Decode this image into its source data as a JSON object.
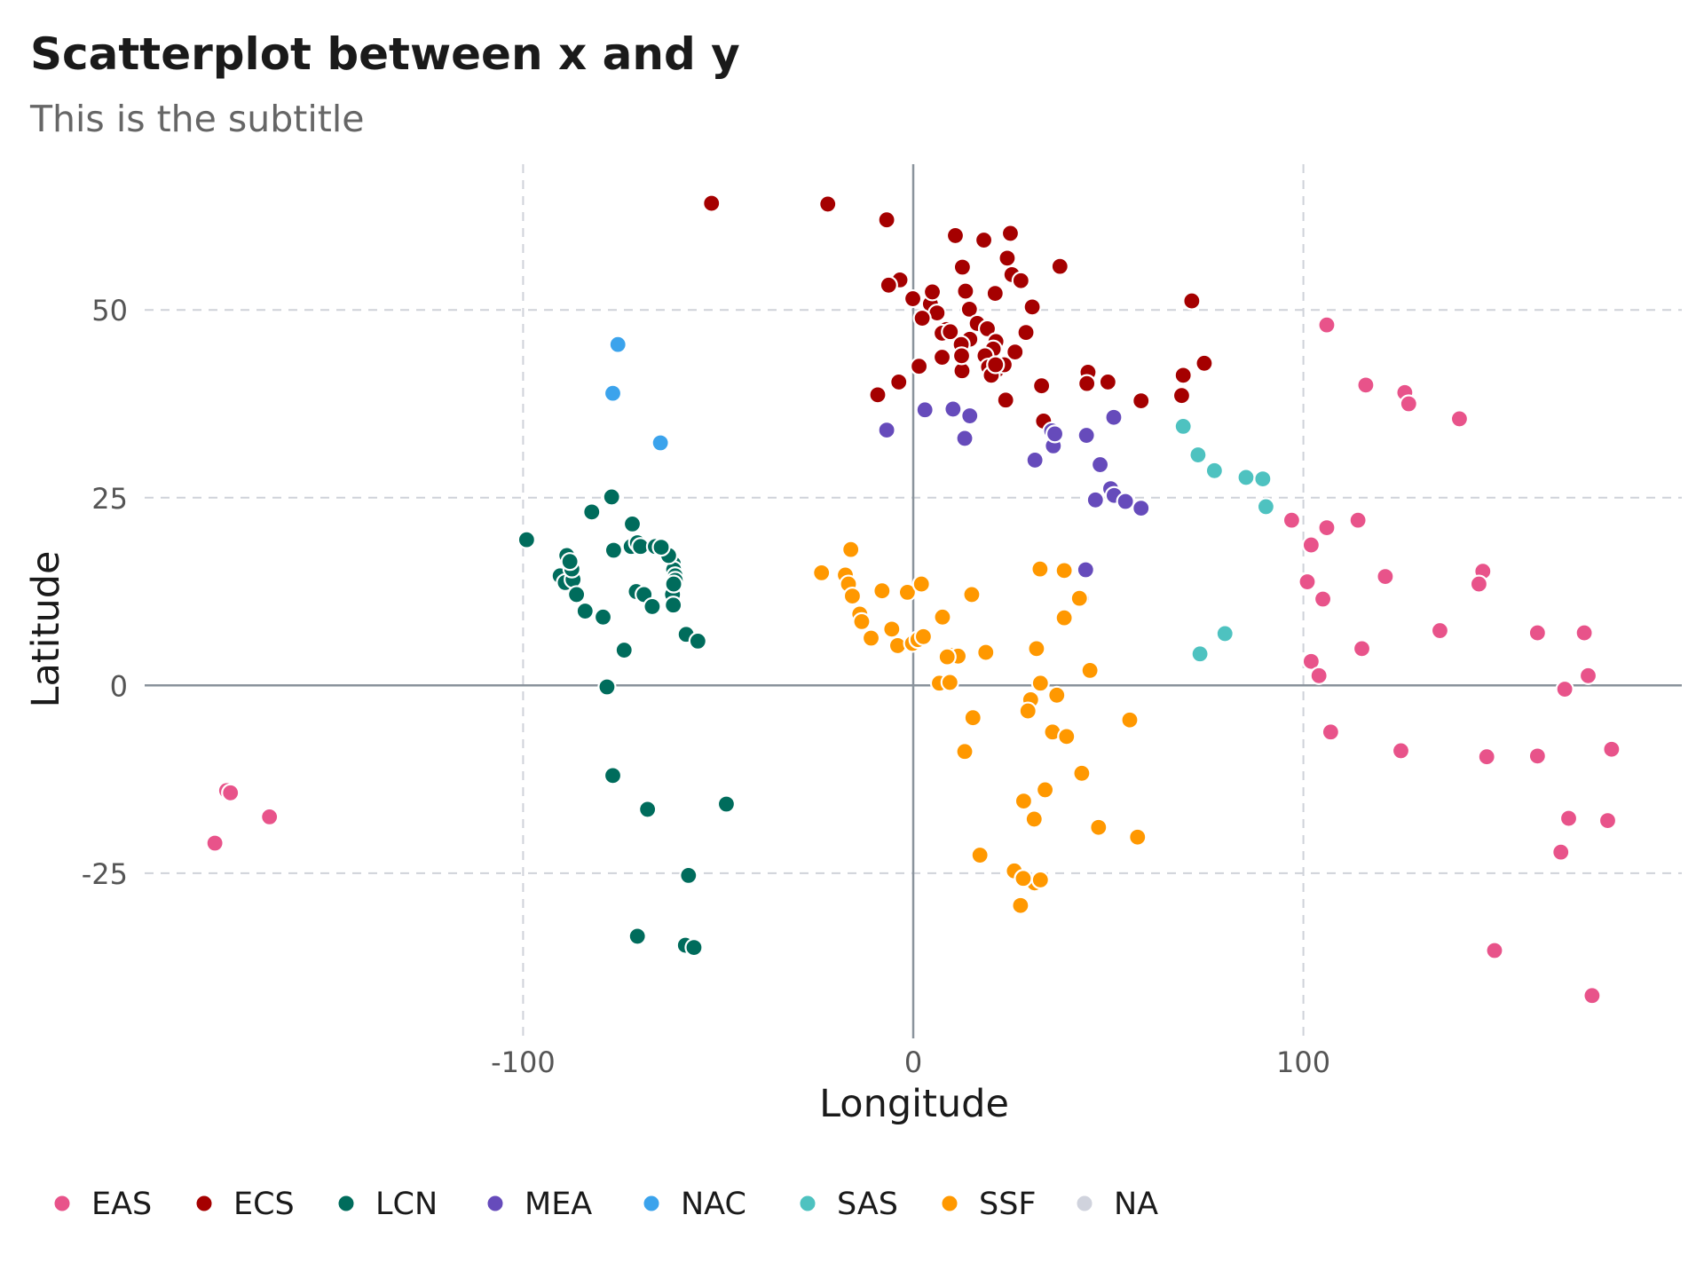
{
  "chart_data": {
    "type": "scatter",
    "title": "Scatterplot between x and y",
    "subtitle": "This is the subtitle",
    "xlabel": "Longitude",
    "ylabel": "Latitude",
    "xlim": [
      -197,
      197
    ],
    "ylim": [
      -47,
      70
    ],
    "x_ticks": [
      -100,
      0,
      100
    ],
    "x_tick_labels": [
      "-100",
      "0",
      "100"
    ],
    "y_ticks": [
      -25,
      0,
      25,
      50
    ],
    "y_tick_labels": [
      "-25",
      "0",
      "25",
      "50"
    ],
    "grid": true,
    "legend_position": "bottom",
    "series": [
      {
        "name": "EAS",
        "color": "#e8538a",
        "points": [
          [
            -176,
            -14
          ],
          [
            -175,
            -14.3
          ],
          [
            -165,
            -17.5
          ],
          [
            -179,
            -21
          ],
          [
            106,
            48
          ],
          [
            116,
            40
          ],
          [
            126,
            39
          ],
          [
            127,
            37.5
          ],
          [
            140,
            35.5
          ],
          [
            97,
            22
          ],
          [
            106,
            21
          ],
          [
            114,
            22
          ],
          [
            102,
            18.7
          ],
          [
            101,
            13.8
          ],
          [
            105,
            11.5
          ],
          [
            121,
            14.5
          ],
          [
            146,
            15.2
          ],
          [
            145,
            13.5
          ],
          [
            135,
            7.3
          ],
          [
            160,
            7
          ],
          [
            172,
            7
          ],
          [
            115,
            4.9
          ],
          [
            102,
            3.2
          ],
          [
            104,
            1.3
          ],
          [
            173,
            1.3
          ],
          [
            167,
            -0.5
          ],
          [
            107,
            -6.2
          ],
          [
            125,
            -8.7
          ],
          [
            147,
            -9.5
          ],
          [
            160,
            -9.4
          ],
          [
            179,
            -8.5
          ],
          [
            168,
            -17.7
          ],
          [
            178,
            -18
          ],
          [
            166,
            -22.2
          ],
          [
            149,
            -35.3
          ],
          [
            174,
            -41.3
          ]
        ]
      },
      {
        "name": "ECS",
        "color": "#a50000",
        "points": [
          [
            -51.7,
            64.2
          ],
          [
            -21.9,
            64.1
          ],
          [
            -6.8,
            62
          ],
          [
            10.8,
            59.9
          ],
          [
            18.1,
            59.3
          ],
          [
            24.9,
            60.2
          ],
          [
            37.6,
            55.8
          ],
          [
            12.6,
            55.7
          ],
          [
            24.1,
            56.9
          ],
          [
            25.3,
            54.7
          ],
          [
            27.6,
            53.9
          ],
          [
            21,
            52.2
          ],
          [
            13.4,
            52.5
          ],
          [
            -3.4,
            54
          ],
          [
            -6.3,
            53.3
          ],
          [
            -0.1,
            51.5
          ],
          [
            4.4,
            50.8
          ],
          [
            4.9,
            52.4
          ],
          [
            6.1,
            49.6
          ],
          [
            2.3,
            48.9
          ],
          [
            30.5,
            50.4
          ],
          [
            14.4,
            50.1
          ],
          [
            17.1,
            48.1
          ],
          [
            16.4,
            48.2
          ],
          [
            19,
            47.5
          ],
          [
            8.5,
            47.4
          ],
          [
            7.4,
            46.9
          ],
          [
            14.5,
            46.1
          ],
          [
            9.5,
            47.1
          ],
          [
            28.9,
            47
          ],
          [
            21.2,
            45.8
          ],
          [
            12.3,
            45.4
          ],
          [
            20.5,
            44.8
          ],
          [
            26.1,
            44.4
          ],
          [
            7.4,
            43.7
          ],
          [
            12.5,
            41.9
          ],
          [
            12.4,
            43.9
          ],
          [
            18.4,
            43.9
          ],
          [
            19.3,
            42.4
          ],
          [
            21.4,
            42
          ],
          [
            20,
            41.3
          ],
          [
            23.3,
            42.7
          ],
          [
            21.1,
            42.7
          ],
          [
            1.5,
            42.5
          ],
          [
            -3.7,
            40.4
          ],
          [
            -9.1,
            38.7
          ],
          [
            23.7,
            38
          ],
          [
            32.9,
            39.9
          ],
          [
            33.4,
            35.2
          ],
          [
            44.8,
            41.7
          ],
          [
            44.5,
            40.2
          ],
          [
            49.9,
            40.4
          ],
          [
            58.4,
            37.9
          ],
          [
            69.2,
            41.3
          ],
          [
            68.8,
            38.6
          ],
          [
            74.6,
            42.9
          ],
          [
            71.4,
            51.2
          ]
        ]
      },
      {
        "name": "LCN",
        "color": "#006c5c",
        "points": [
          [
            -99.1,
            19.4
          ],
          [
            -90.5,
            14.6
          ],
          [
            -89.2,
            13.7
          ],
          [
            -87.2,
            14.1
          ],
          [
            -86.3,
            12.1
          ],
          [
            -84.1,
            9.9
          ],
          [
            -79.5,
            9
          ],
          [
            -88.8,
            17.3
          ],
          [
            -87.5,
            15.5
          ],
          [
            -76.8,
            18
          ],
          [
            -72.3,
            18.5
          ],
          [
            -70.7,
            19
          ],
          [
            -69.9,
            18.5
          ],
          [
            -66.1,
            18.5
          ],
          [
            -61.5,
            16.2
          ],
          [
            -61.4,
            15.4
          ],
          [
            -61,
            14.6
          ],
          [
            -61,
            14
          ],
          [
            -61.2,
            13.2
          ],
          [
            -61.7,
            12.1
          ],
          [
            -61.5,
            10.7
          ],
          [
            -61.4,
            13.5
          ],
          [
            -62.7,
            17.3
          ],
          [
            -64.6,
            18.4
          ],
          [
            -77.3,
            25.1
          ],
          [
            -82.4,
            23.1
          ],
          [
            -71,
            12.5
          ],
          [
            -69,
            12.1
          ],
          [
            -66.9,
            10.5
          ],
          [
            -58.2,
            6.8
          ],
          [
            -55.2,
            5.9
          ],
          [
            -74.1,
            4.7
          ],
          [
            -78.5,
            -0.2
          ],
          [
            -77,
            -12
          ],
          [
            -68.1,
            -16.5
          ],
          [
            -47.9,
            -15.8
          ],
          [
            -57.6,
            -25.3
          ],
          [
            -70.7,
            -33.4
          ],
          [
            -58.4,
            -34.6
          ],
          [
            -56.2,
            -34.9
          ],
          [
            -79.5,
            9.1
          ],
          [
            -72,
            21.5
          ],
          [
            -88,
            16.5
          ]
        ]
      },
      {
        "name": "MEA",
        "color": "#664bbb",
        "points": [
          [
            -6.8,
            34
          ],
          [
            3,
            36.7
          ],
          [
            10.2,
            36.8
          ],
          [
            13.2,
            32.9
          ],
          [
            14.5,
            35.9
          ],
          [
            31.2,
            30
          ],
          [
            35.9,
            31.9
          ],
          [
            35.5,
            33.9
          ],
          [
            36.3,
            33.5
          ],
          [
            44.4,
            33.3
          ],
          [
            51.4,
            35.7
          ],
          [
            47.9,
            29.4
          ],
          [
            50.6,
            26.2
          ],
          [
            51.5,
            25.3
          ],
          [
            46.7,
            24.7
          ],
          [
            54.4,
            24.5
          ],
          [
            58.4,
            23.6
          ],
          [
            44.2,
            15.4
          ],
          [
            43.1,
            11.6
          ]
        ]
      },
      {
        "name": "NAC",
        "color": "#3ba3ec",
        "points": [
          [
            -75.7,
            45.4
          ],
          [
            -77,
            38.9
          ],
          [
            -64.8,
            32.3
          ]
        ]
      },
      {
        "name": "SAS",
        "color": "#4ec2c0",
        "points": [
          [
            69.2,
            34.5
          ],
          [
            73,
            30.7
          ],
          [
            77.2,
            28.6
          ],
          [
            85.3,
            27.7
          ],
          [
            89.6,
            27.5
          ],
          [
            90.4,
            23.8
          ],
          [
            79.9,
            6.9
          ],
          [
            73.5,
            4.2
          ]
        ]
      },
      {
        "name": "SSF",
        "color": "#ff9800",
        "points": [
          [
            -23.5,
            15
          ],
          [
            -17.4,
            14.7
          ],
          [
            -16.6,
            13.5
          ],
          [
            -15.6,
            11.9
          ],
          [
            -13.7,
            9.5
          ],
          [
            -13.2,
            8.5
          ],
          [
            -10.8,
            6.3
          ],
          [
            -16,
            18.1
          ],
          [
            -8,
            12.6
          ],
          [
            -5.5,
            7.5
          ],
          [
            -4,
            5.3
          ],
          [
            -1.5,
            12.4
          ],
          [
            -0.2,
            5.6
          ],
          [
            1.2,
            6.1
          ],
          [
            2.1,
            13.5
          ],
          [
            2.6,
            6.5
          ],
          [
            7.5,
            9.1
          ],
          [
            9.5,
            4
          ],
          [
            11.5,
            3.9
          ],
          [
            8.7,
            3.8
          ],
          [
            6.7,
            0.3
          ],
          [
            9.4,
            0.4
          ],
          [
            15.3,
            -4.3
          ],
          [
            13.2,
            -8.8
          ],
          [
            15,
            12.1
          ],
          [
            18.6,
            4.4
          ],
          [
            31.6,
            4.9
          ],
          [
            32.6,
            0.3
          ],
          [
            30.1,
            -1.9
          ],
          [
            29.4,
            -3.4
          ],
          [
            35.7,
            -6.2
          ],
          [
            39.3,
            -6.8
          ],
          [
            36.8,
            -1.3
          ],
          [
            45.3,
            2
          ],
          [
            43.2,
            -11.7
          ],
          [
            47.5,
            -18.9
          ],
          [
            57.5,
            -20.2
          ],
          [
            33.8,
            -13.9
          ],
          [
            28.3,
            -15.4
          ],
          [
            31,
            -17.8
          ],
          [
            17.1,
            -22.6
          ],
          [
            25.9,
            -24.7
          ],
          [
            28.2,
            -25.7
          ],
          [
            31.1,
            -26.3
          ],
          [
            32.6,
            -25.9
          ],
          [
            27.5,
            -29.3
          ],
          [
            32.5,
            15.5
          ],
          [
            38.7,
            15.3
          ],
          [
            38.7,
            9
          ],
          [
            42.6,
            11.6
          ],
          [
            55.5,
            -4.6
          ],
          [
            28.2,
            -25.7
          ]
        ]
      },
      {
        "name": "NA",
        "color": "#d0d3dd",
        "points": []
      }
    ]
  }
}
